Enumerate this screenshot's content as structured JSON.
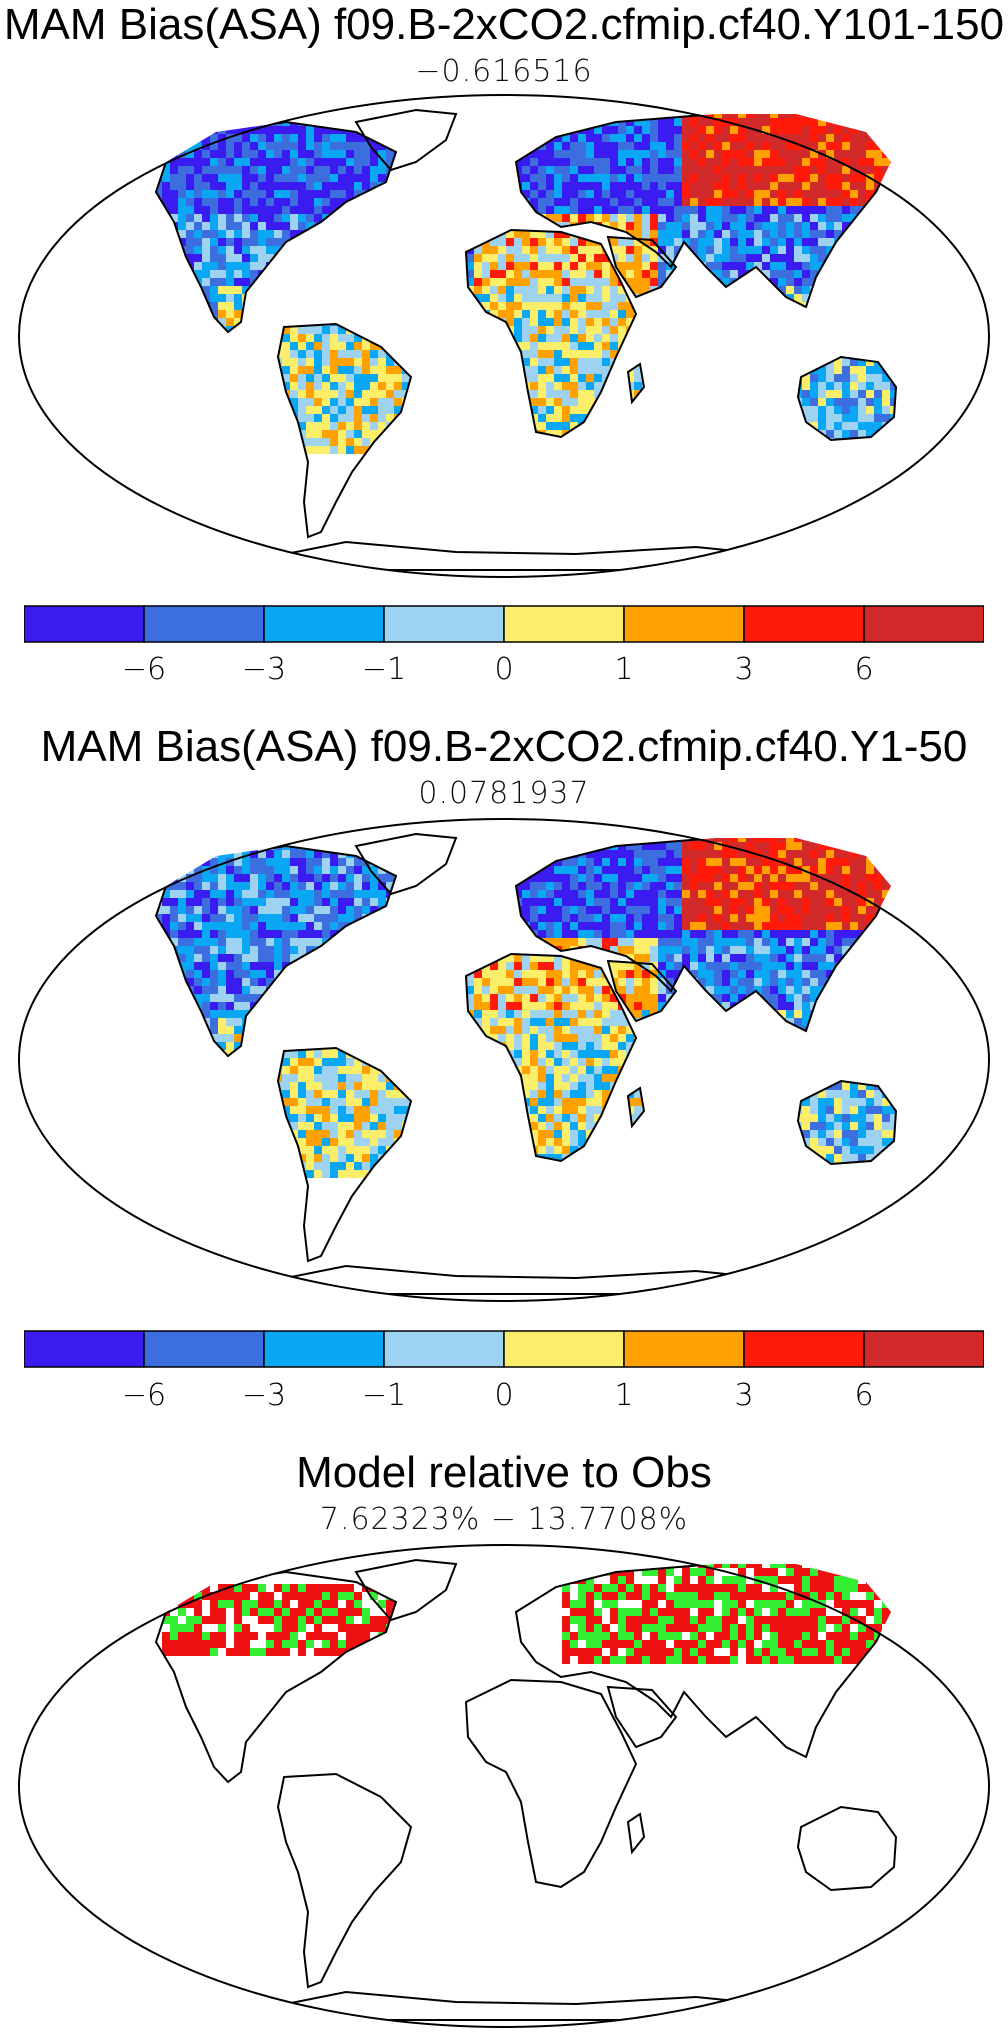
{
  "panels": [
    {
      "title": "MAM Bias(ASA) f09.B-2xCO2.cfmip.cf40.Y101-150",
      "value": "−0.616516",
      "scheme": "bias"
    },
    {
      "title": "MAM Bias(ASA) f09.B-2xCO2.cfmip.cf40.Y1-50",
      "value": "0.0781937",
      "scheme": "bias"
    },
    {
      "title": "Model relative to Obs",
      "value": "7.62323%  −  13.7708%",
      "scheme": "relative"
    }
  ],
  "colorbar": {
    "colors": [
      "#3a1cf0",
      "#3c6ee0",
      "#0aa8f4",
      "#9dd2f0",
      "#fbee6a",
      "#ffa100",
      "#ff1a0a",
      "#d22a2a"
    ],
    "tick_labels": [
      "−6",
      "−3",
      "−1",
      "0",
      "1",
      "3",
      "6"
    ]
  },
  "relative_colors": {
    "green": "#33ee33",
    "red": "#ee1111"
  }
}
